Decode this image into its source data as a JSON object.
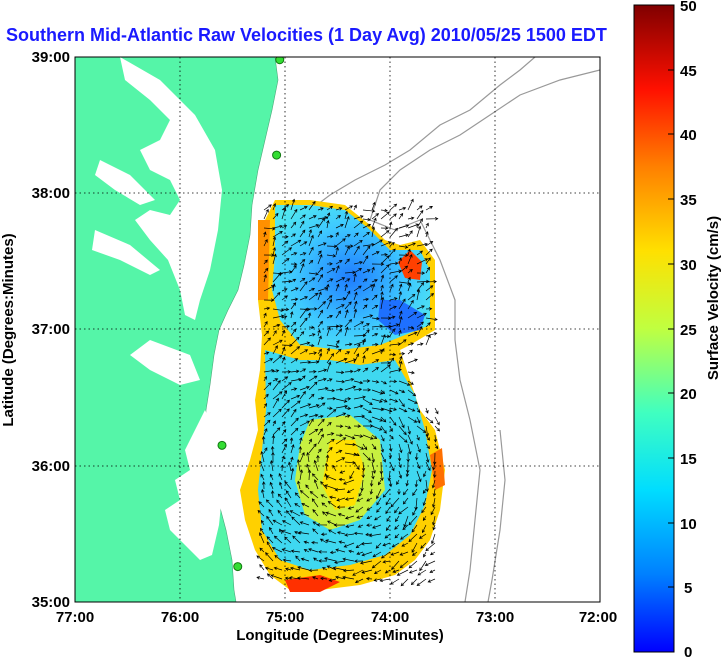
{
  "title": "Southern Mid-Atlantic Raw Velocities (1 Day Avg) 2010/05/25 1500 EDT",
  "map": {
    "xlabel": "Longitude (Degrees:Minutes)",
    "ylabel": "Latitude (Degrees:Minutes)",
    "x_ticks": [
      "77:00",
      "76:00",
      "75:00",
      "74:00",
      "73:00",
      "72:00"
    ],
    "y_ticks": [
      "39:00",
      "38:00",
      "37:00",
      "36:00",
      "35:00"
    ],
    "lon_range": [
      -77,
      -72
    ],
    "lat_range": [
      35,
      39
    ],
    "land_color": "#55f5a8",
    "grid": true
  },
  "colorbar": {
    "label": "Surface Velocity (cm/s)",
    "ticks": [
      "50",
      "45",
      "40",
      "35",
      "30",
      "25",
      "20",
      "15",
      "10",
      "5",
      "0"
    ],
    "range": [
      0,
      50
    ],
    "colormap": "jet"
  },
  "stations": [
    {
      "lon": -75.05,
      "lat": 38.98
    },
    {
      "lon": -75.08,
      "lat": 38.28
    },
    {
      "lon": -75.6,
      "lat": 36.15
    },
    {
      "lon": -75.45,
      "lat": 35.26
    }
  ]
}
